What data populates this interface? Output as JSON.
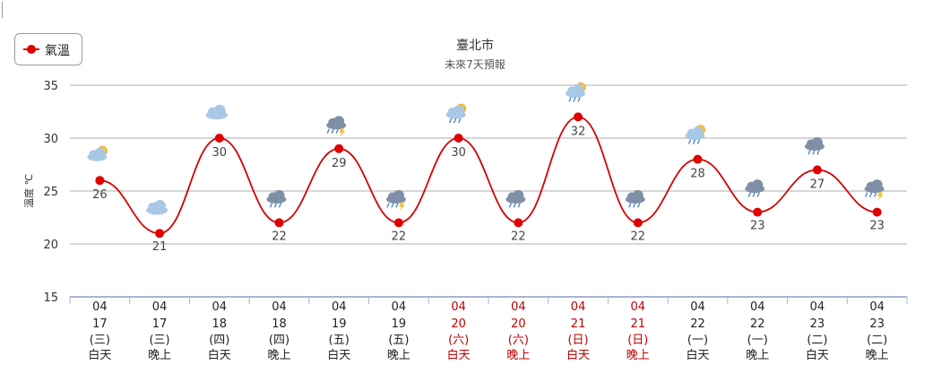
{
  "chart_data": {
    "type": "line",
    "title": "臺北市",
    "subtitle": "未來7天預報",
    "legend": "氣溫",
    "ylabel": "溫度 ℃",
    "xlabel": "",
    "ylim": [
      15,
      35
    ],
    "yticks": [
      15,
      20,
      25,
      30,
      35
    ],
    "grid": true,
    "series": [
      {
        "name": "氣溫",
        "values": [
          26,
          21,
          30,
          22,
          29,
          22,
          30,
          22,
          32,
          22,
          28,
          23,
          27,
          23
        ]
      }
    ],
    "categories": [
      {
        "month": "04",
        "day": "17",
        "weekday": "(三)",
        "period": "白天",
        "holiday": false,
        "icon": "partly-cloudy-sun-icon"
      },
      {
        "month": "04",
        "day": "17",
        "weekday": "(三)",
        "period": "晚上",
        "holiday": false,
        "icon": "cloudy-icon"
      },
      {
        "month": "04",
        "day": "18",
        "weekday": "(四)",
        "period": "白天",
        "holiday": false,
        "icon": "cloudy-icon"
      },
      {
        "month": "04",
        "day": "18",
        "weekday": "(四)",
        "period": "晚上",
        "holiday": false,
        "icon": "cloudy-rain-icon"
      },
      {
        "month": "04",
        "day": "19",
        "weekday": "(五)",
        "period": "白天",
        "holiday": false,
        "icon": "thunderstorm-icon"
      },
      {
        "month": "04",
        "day": "19",
        "weekday": "(五)",
        "period": "晚上",
        "holiday": false,
        "icon": "thunderstorm-icon"
      },
      {
        "month": "04",
        "day": "20",
        "weekday": "(六)",
        "period": "白天",
        "holiday": true,
        "icon": "sun-shower-icon"
      },
      {
        "month": "04",
        "day": "20",
        "weekday": "(六)",
        "period": "晚上",
        "holiday": true,
        "icon": "cloudy-rain-icon"
      },
      {
        "month": "04",
        "day": "21",
        "weekday": "(日)",
        "period": "白天",
        "holiday": true,
        "icon": "sun-shower-icon"
      },
      {
        "month": "04",
        "day": "21",
        "weekday": "(日)",
        "period": "晚上",
        "holiday": true,
        "icon": "cloudy-rain-icon"
      },
      {
        "month": "04",
        "day": "22",
        "weekday": "(一)",
        "period": "白天",
        "holiday": false,
        "icon": "sun-shower-icon"
      },
      {
        "month": "04",
        "day": "22",
        "weekday": "(一)",
        "period": "晚上",
        "holiday": false,
        "icon": "cloudy-rain-icon"
      },
      {
        "month": "04",
        "day": "23",
        "weekday": "(二)",
        "period": "白天",
        "holiday": false,
        "icon": "cloudy-rain-icon"
      },
      {
        "month": "04",
        "day": "23",
        "weekday": "(二)",
        "period": "晚上",
        "holiday": false,
        "icon": "thunderstorm-icon"
      }
    ],
    "colors": {
      "line": "#d40000",
      "marker": "#e00000",
      "grid": "#c8c8c8",
      "axis": "#a9b5d1",
      "holiday_text": "#c00000",
      "normal_text": "#222222"
    }
  }
}
